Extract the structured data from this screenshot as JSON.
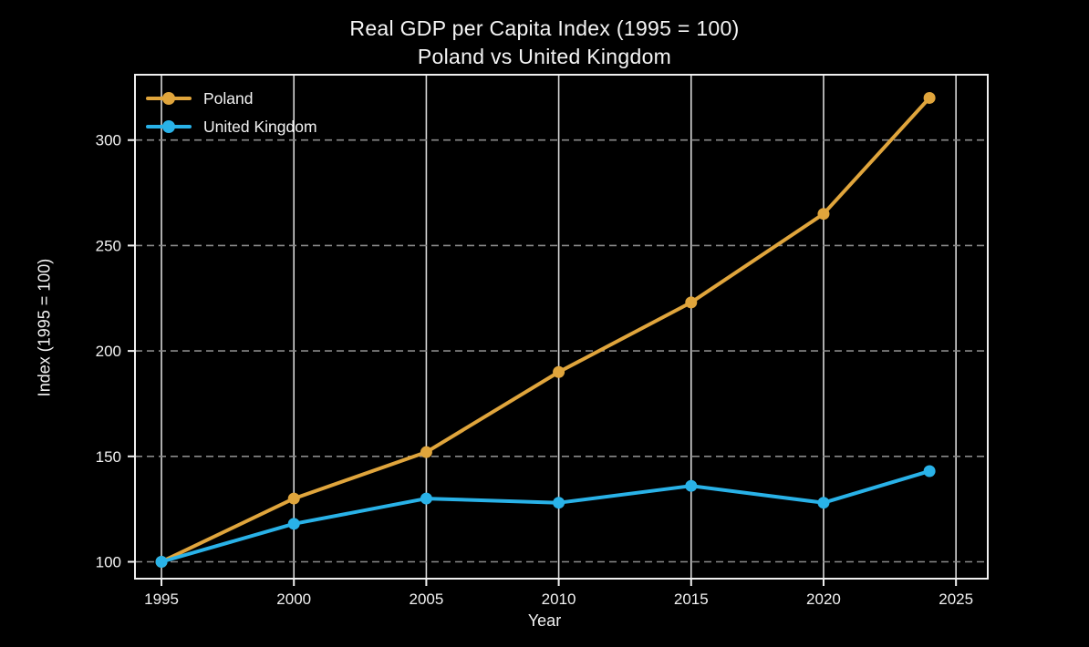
{
  "title": {
    "line1": "Real GDP per Capita Index (1995 = 100)",
    "line2": "Poland vs United Kingdom"
  },
  "chart_data": {
    "type": "line",
    "title": "Real GDP per Capita Index (1995 = 100) — Poland vs United Kingdom",
    "xlabel": "Year",
    "ylabel": "Index (1995 = 100)",
    "x": [
      1995,
      2000,
      2005,
      2010,
      2015,
      2020,
      2024
    ],
    "series": [
      {
        "name": "Poland",
        "color": "#E0A53C",
        "values": [
          100,
          130,
          152,
          190,
          223,
          265,
          320
        ]
      },
      {
        "name": "United Kingdom",
        "color": "#29B2E8",
        "values": [
          100,
          118,
          130,
          128,
          136,
          128,
          143
        ]
      }
    ],
    "xlim": [
      1994.0,
      2026.2
    ],
    "ylim": [
      92,
      331
    ],
    "xticks": {
      "values": [
        1995,
        2000,
        2005,
        2010,
        2015,
        2020,
        2025
      ],
      "labels": [
        "1995",
        "2000",
        "2005",
        "2010",
        "2015",
        "2020",
        "2025"
      ]
    },
    "yticks": {
      "values": [
        100,
        150,
        200,
        250,
        300
      ],
      "labels": [
        "100",
        "150",
        "200",
        "250",
        "300"
      ]
    },
    "grid": {
      "vertical": "solid",
      "horizontal": "dashed"
    },
    "legend_position": "upper-left",
    "colors": {
      "background": "#000000",
      "text": "#f2f2f2",
      "grid_vertical": "#d8d8d8",
      "grid_horizontal": "#8a8a8a",
      "spine": "#f0f0f0"
    }
  }
}
